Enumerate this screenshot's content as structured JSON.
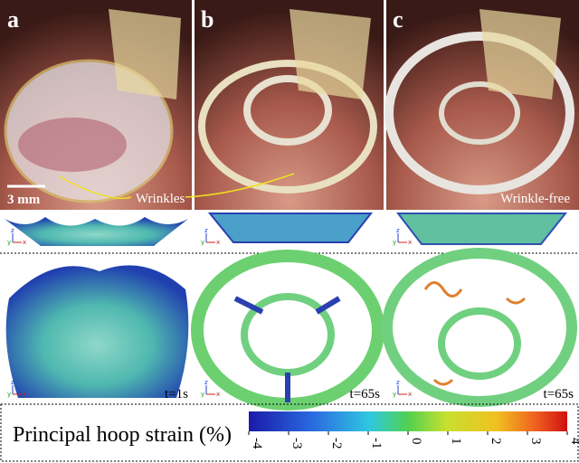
{
  "panels": [
    {
      "letter": "a",
      "time": "t=1s"
    },
    {
      "letter": "b",
      "time": "t=65s"
    },
    {
      "letter": "c",
      "time": "t=65s"
    }
  ],
  "scale_bar": "3 mm",
  "annotations": {
    "left": "Wrinkles",
    "right": "Wrinkle-free"
  },
  "axes": [
    "x",
    "y",
    "z"
  ],
  "colorbar": {
    "label": "Principal hoop strain (%)",
    "lim": [
      -4,
      4
    ],
    "ticks": [
      -4,
      -3,
      -2,
      -1,
      0,
      1,
      2,
      3,
      4
    ]
  }
}
